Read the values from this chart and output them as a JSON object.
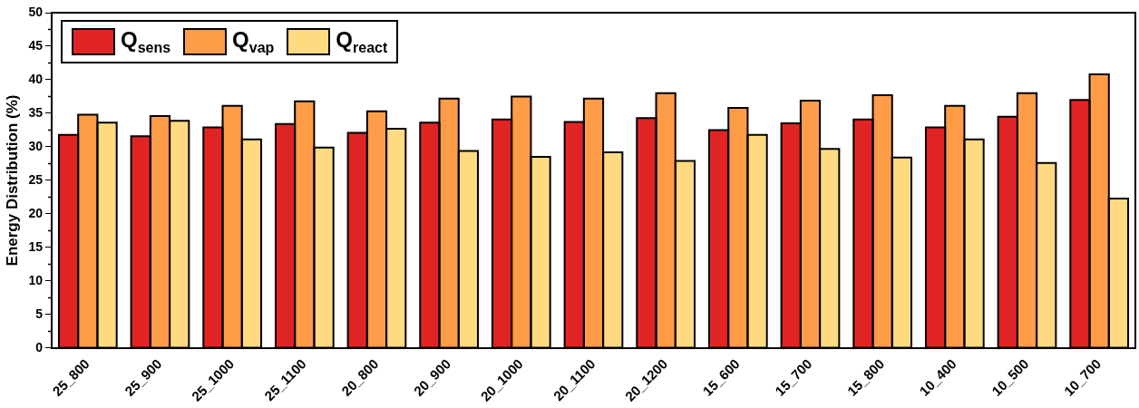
{
  "chart_data": {
    "type": "bar",
    "ylabel": "Energy Distribution (%)",
    "categories": [
      "25_800",
      "25_900",
      "25_1000",
      "25_1100",
      "20_800",
      "20_900",
      "20_1000",
      "20_1100",
      "20_1200",
      "15_600",
      "15_700",
      "15_800",
      "10_400",
      "10_500",
      "10_700"
    ],
    "series": [
      {
        "name": "Q$_{sens}$",
        "color": "#e02424",
        "values": [
          31.8,
          31.6,
          32.9,
          33.4,
          32.1,
          33.6,
          34.1,
          33.7,
          34.3,
          32.5,
          33.5,
          34.1,
          32.9,
          34.5,
          37.0
        ]
      },
      {
        "name": "Q$_{vap}$",
        "color": "#ff9c48",
        "values": [
          34.8,
          34.6,
          36.1,
          36.8,
          35.3,
          37.2,
          37.5,
          37.2,
          38.0,
          35.8,
          36.9,
          37.7,
          36.1,
          38.0,
          40.8
        ]
      },
      {
        "name": "Q$_{react}$",
        "color": "#ffda80",
        "values": [
          33.6,
          33.9,
          31.1,
          29.9,
          32.7,
          29.4,
          28.5,
          29.2,
          27.9,
          31.8,
          29.7,
          28.4,
          31.1,
          27.6,
          22.3
        ]
      }
    ],
    "ylim": [
      0,
      50
    ],
    "yticks": [
      0,
      5,
      10,
      15,
      20,
      25,
      30,
      35,
      40,
      45,
      50
    ],
    "grid": false,
    "legend": "top left"
  }
}
